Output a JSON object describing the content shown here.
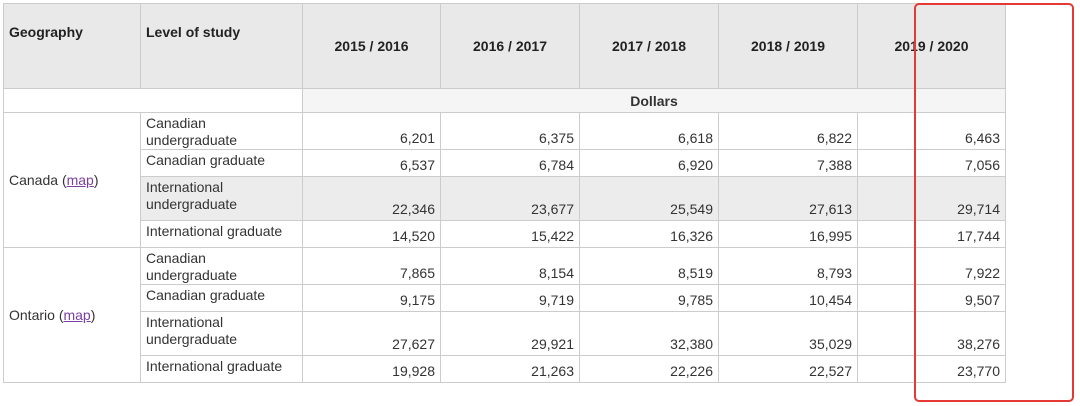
{
  "header": {
    "columns": [
      "Geography",
      "Level of study",
      "2015 / 2016",
      "2016 / 2017",
      "2017 / 2018",
      "2018 / 2019",
      "2019 / 2020"
    ]
  },
  "unit": "Dollars",
  "groups": [
    {
      "geography": "Canada",
      "link_open": "(",
      "link": "map",
      "link_close": ")",
      "rows": [
        {
          "level": "Canadian undergraduate",
          "values": [
            "6,201",
            "6,375",
            "6,618",
            "6,822",
            "6,463"
          ]
        },
        {
          "level": "Canadian graduate",
          "values": [
            "6,537",
            "6,784",
            "6,920",
            "7,388",
            "7,056"
          ]
        },
        {
          "level": "International undergraduate",
          "values": [
            "22,346",
            "23,677",
            "25,549",
            "27,613",
            "29,714"
          ]
        },
        {
          "level": "International graduate",
          "values": [
            "14,520",
            "15,422",
            "16,326",
            "16,995",
            "17,744"
          ]
        }
      ]
    },
    {
      "geography": "Ontario",
      "link_open": "(",
      "link": "map",
      "link_close": ")",
      "rows": [
        {
          "level": "Canadian undergraduate",
          "values": [
            "7,865",
            "8,154",
            "8,519",
            "8,793",
            "7,922"
          ]
        },
        {
          "level": "Canadian graduate",
          "values": [
            "9,175",
            "9,719",
            "9,785",
            "10,454",
            "9,507"
          ]
        },
        {
          "level": "International undergraduate",
          "values": [
            "27,627",
            "29,921",
            "32,380",
            "35,029",
            "38,276"
          ]
        },
        {
          "level": "International graduate",
          "values": [
            "19,928",
            "21,263",
            "22,226",
            "22,527",
            "23,770"
          ]
        }
      ]
    }
  ]
}
